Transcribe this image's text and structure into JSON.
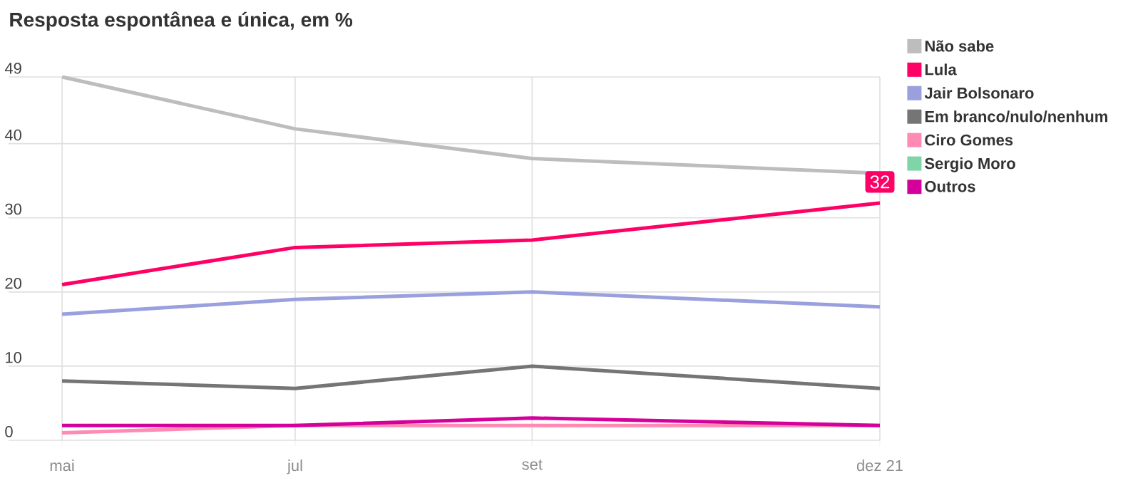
{
  "chart_data": {
    "type": "line",
    "title": "Resposta espontânea e única, em %",
    "x": [
      "2021-05",
      "2021-07",
      "2021-09",
      "2021-12"
    ],
    "xlim": [
      "2021-04-17",
      "2021-12"
    ],
    "xticks": [
      {
        "value": "2021-05",
        "label": "mai"
      },
      {
        "value": "2021-07",
        "label": "jul"
      },
      {
        "value": "2021-09",
        "label": "set"
      },
      {
        "value": "2021-12",
        "label": "dez 21"
      }
    ],
    "ylim": [
      0,
      49
    ],
    "yticks": [
      0,
      10,
      20,
      30,
      40,
      49
    ],
    "grid": true,
    "legend": "top right",
    "series": [
      {
        "name": "Não sabe",
        "color": "#bdbdbd",
        "values": [
          49,
          42,
          38,
          36
        ]
      },
      {
        "name": "Lula",
        "color": "#ff0066",
        "values": [
          21,
          26,
          27,
          32
        ],
        "value_labels": [
          null,
          null,
          null,
          "32"
        ]
      },
      {
        "name": "Jair Bolsonaro",
        "color": "#99a0dd",
        "values": [
          17,
          19,
          20,
          18
        ]
      },
      {
        "name": "Em branco/nulo/nenhum",
        "color": "#757575",
        "values": [
          8,
          7,
          10,
          7
        ]
      },
      {
        "name": "Ciro Gomes",
        "color": "#ff8ab4",
        "values": [
          1,
          2,
          2,
          2
        ]
      },
      {
        "name": "Sergio Moro",
        "color": "#7fd4a8",
        "values": [
          null,
          null,
          null,
          null
        ]
      },
      {
        "name": "Outros",
        "color": "#d4009b",
        "values": [
          2,
          2,
          3,
          2
        ]
      }
    ]
  }
}
